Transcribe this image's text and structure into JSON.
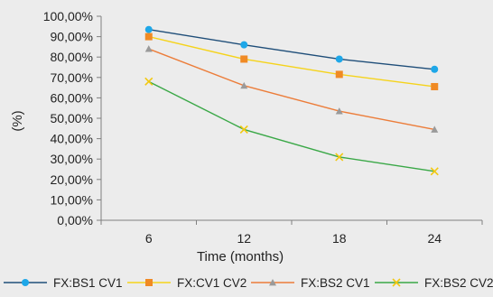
{
  "chart_data": {
    "type": "line",
    "title": "",
    "xlabel": "Time (months)",
    "ylabel": "(%)",
    "categories": [
      "6",
      "12",
      "18",
      "24"
    ],
    "ylim": [
      0,
      100
    ],
    "y_ticks": [
      "0,00%",
      "10,00%",
      "20,00%",
      "30,00%",
      "40,00%",
      "50,00%",
      "60,00%",
      "70,00%",
      "80,00%",
      "90,00%",
      "100,00%"
    ],
    "grid": false,
    "legend_position": "bottom",
    "series": [
      {
        "name": "FX:BS1 CV1",
        "values": [
          93.5,
          86,
          79,
          74
        ],
        "color": "#1f4e79",
        "marker": "circle",
        "marker_color": "#1ea7e8"
      },
      {
        "name": "FX:CV1 CV2",
        "values": [
          90,
          79,
          71.5,
          65.5
        ],
        "color": "#f5d31b",
        "marker": "square",
        "marker_color": "#f08a24"
      },
      {
        "name": "FX:BS2 CV1",
        "values": [
          84,
          66,
          53.5,
          44.5
        ],
        "color": "#ec7d3a",
        "marker": "triangle",
        "marker_color": "#9a9a9a"
      },
      {
        "name": "FX:BS2 CV2",
        "values": [
          68,
          44.5,
          31,
          24
        ],
        "color": "#3aa847",
        "marker": "x",
        "marker_color": "#f2c80f"
      }
    ],
    "background": "#ececec"
  }
}
